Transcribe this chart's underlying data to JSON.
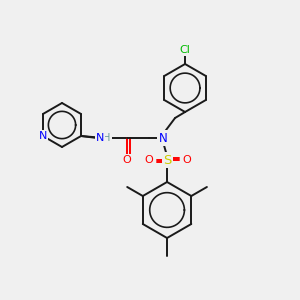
{
  "bg_color": "#f0f0f0",
  "atom_colors": {
    "C": "#1a1a1a",
    "N": "#0000ff",
    "O": "#ff0000",
    "S": "#cccc00",
    "Cl": "#00bb00",
    "H": "#6a9a9a",
    "bond": "#1a1a1a"
  },
  "bond_lw": 1.4,
  "font_size": 7.5
}
